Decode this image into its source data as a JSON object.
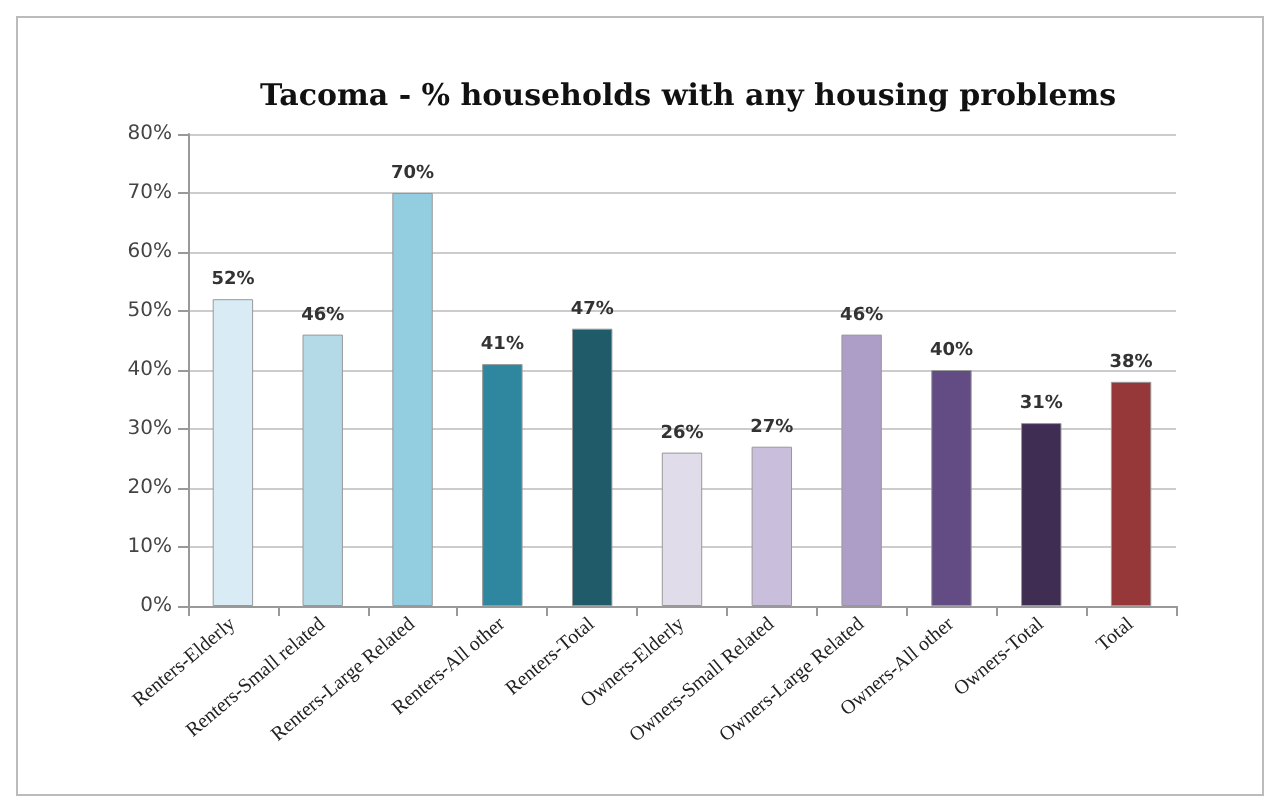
{
  "chart_data": {
    "type": "bar",
    "title": "Tacoma - % households with any housing problems",
    "categories": [
      "Renters-Elderly",
      "Renters-Small related",
      "Renters-Large Related",
      "Renters-All other",
      "Renters-Total",
      "Owners-Elderly",
      "Owners-Small Related",
      "Owners-Large Related",
      "Owners-All other",
      "Owners-Total",
      "Total"
    ],
    "values": [
      52,
      46,
      70,
      41,
      47,
      26,
      27,
      46,
      40,
      31,
      38
    ],
    "value_labels": [
      "52%",
      "46%",
      "70%",
      "41%",
      "47%",
      "26%",
      "27%",
      "46%",
      "40%",
      "31%",
      "38%"
    ],
    "colors": [
      "#d9ebf4",
      "#b4dae8",
      "#93cde0",
      "#2f879f",
      "#1f5b68",
      "#e0dcea",
      "#c9bedb",
      "#ad9ec8",
      "#634c84",
      "#3f2d53",
      "#96373a"
    ],
    "ylim": [
      0,
      80
    ],
    "yticks": [
      {
        "value": 0,
        "label": "0%"
      },
      {
        "value": 10,
        "label": "10%"
      },
      {
        "value": 20,
        "label": "20%"
      },
      {
        "value": 30,
        "label": "30%"
      },
      {
        "value": 40,
        "label": "40%"
      },
      {
        "value": 50,
        "label": "50%"
      },
      {
        "value": 60,
        "label": "60%"
      },
      {
        "value": 70,
        "label": "70%"
      },
      {
        "value": 80,
        "label": "80%"
      }
    ],
    "grid": "y"
  }
}
